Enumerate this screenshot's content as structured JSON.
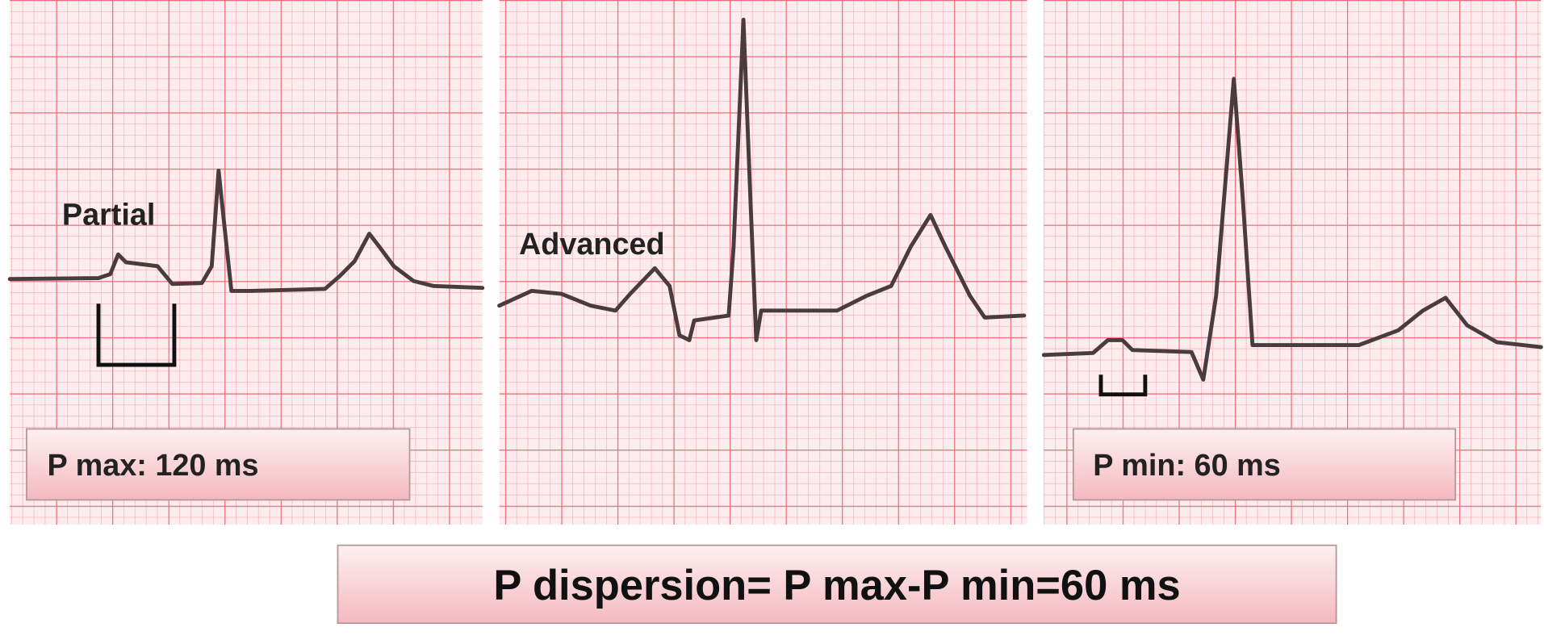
{
  "panels": [
    {
      "label": "Partial",
      "measure": "P max: 120 ms"
    },
    {
      "label": "Advanced"
    },
    {
      "measure": "P min: 60 ms"
    }
  ],
  "formula": "P dispersion= P max-P min=60 ms"
}
